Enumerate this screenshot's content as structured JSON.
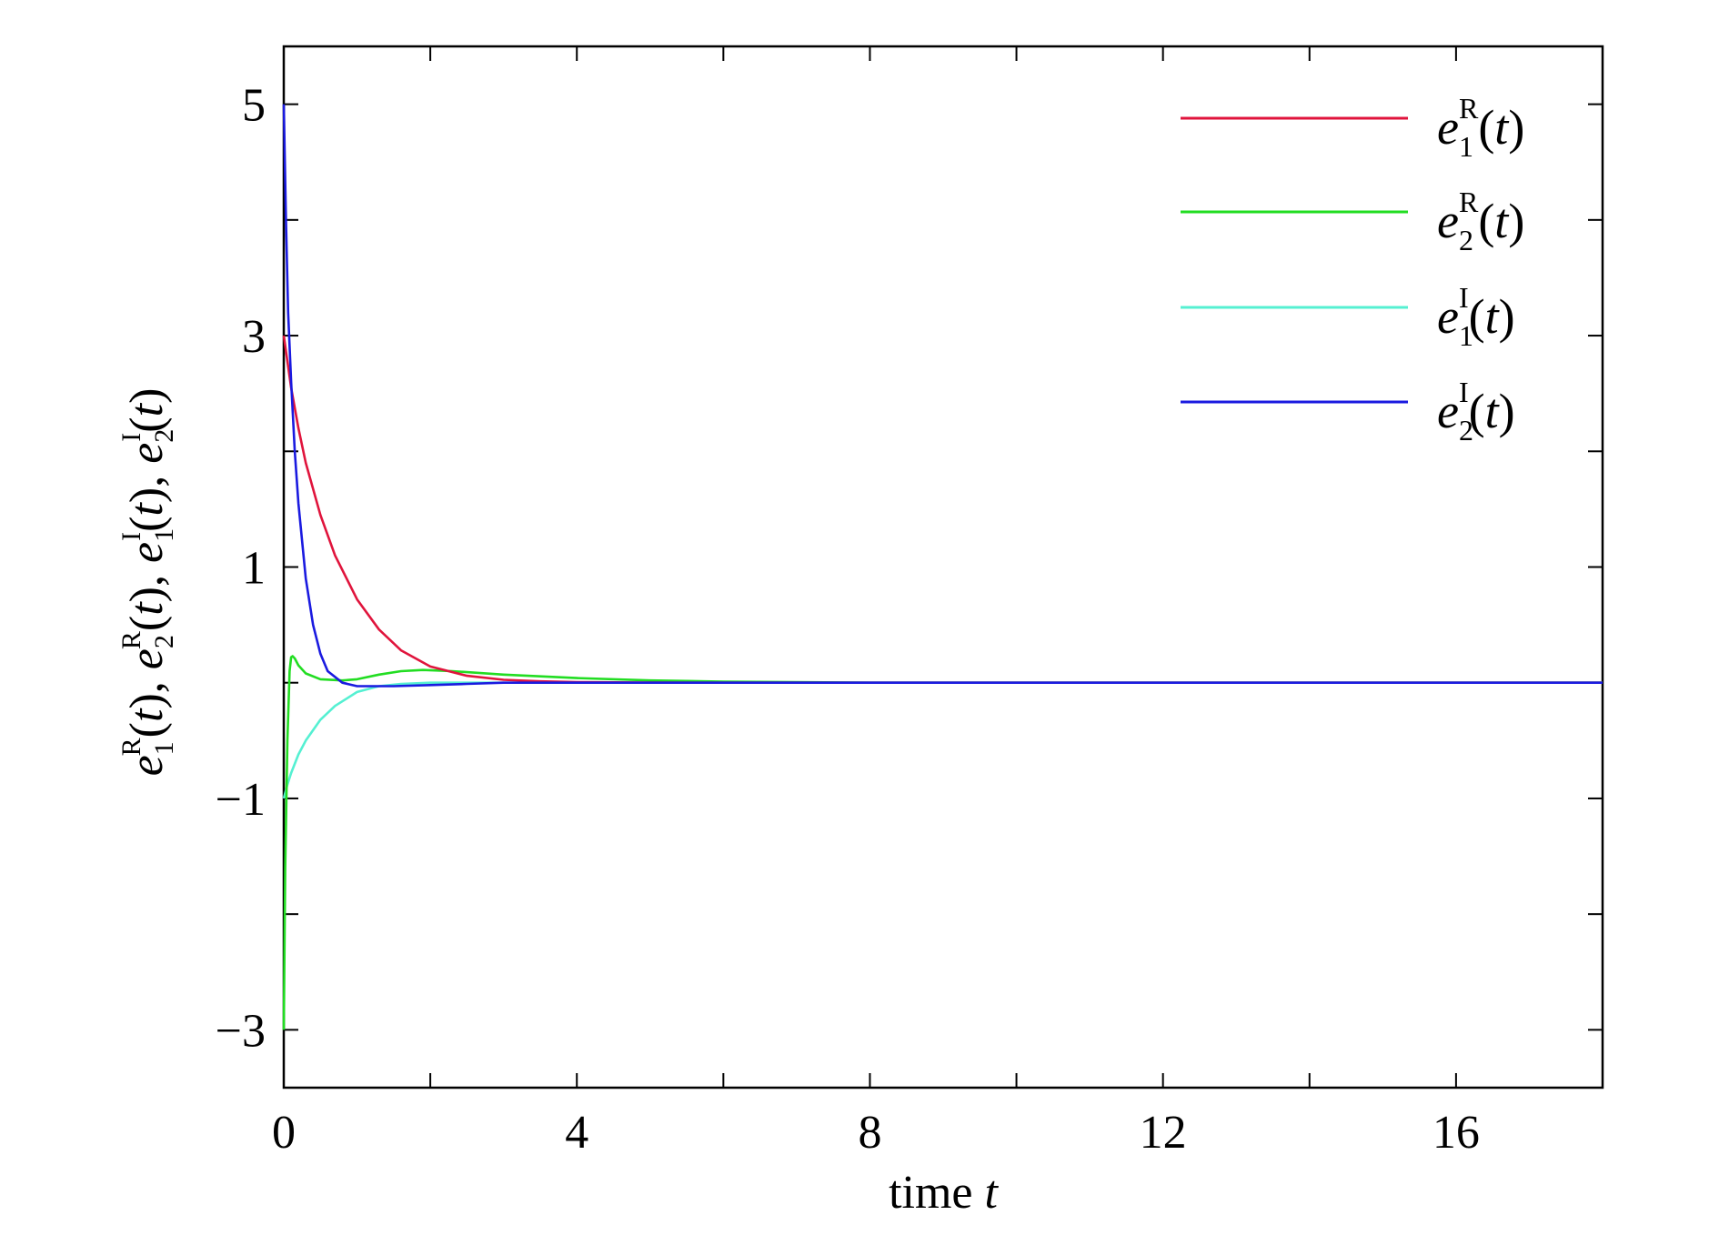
{
  "chart_data": {
    "type": "line",
    "title": "",
    "xlabel": "time t",
    "ylabel": "e1R(t), e2R(t), e1I(t), e2I(t)",
    "xlim": [
      0,
      18
    ],
    "ylim": [
      -3.5,
      5.5
    ],
    "xticks_labeled": [
      0,
      4,
      8,
      12,
      16
    ],
    "xticks_all": [
      0,
      2,
      4,
      6,
      8,
      10,
      12,
      14,
      16
    ],
    "yticks_labeled": [
      -3,
      -1,
      1,
      3,
      5
    ],
    "yticks_all": [
      -3,
      -2,
      -1,
      0,
      1,
      2,
      3,
      4,
      5
    ],
    "x_tick_labels": [
      "0",
      "4",
      "8",
      "12",
      "16"
    ],
    "y_tick_labels": [
      "5",
      "3",
      "1",
      "−1",
      "−3"
    ],
    "grid": false,
    "legend_position": "top-right",
    "series": [
      {
        "name": "e1R(t)",
        "label_base": "e",
        "label_sub": "1",
        "label_sup": "R",
        "label_arg": "(t)",
        "color": "#e0143c",
        "x": [
          0,
          0.1,
          0.2,
          0.3,
          0.5,
          0.7,
          1.0,
          1.3,
          1.6,
          2.0,
          2.5,
          3.0,
          3.5,
          4.0,
          5.0,
          6.0,
          8.0,
          12.0,
          18.0
        ],
        "y": [
          3.0,
          2.55,
          2.2,
          1.9,
          1.45,
          1.1,
          0.72,
          0.46,
          0.28,
          0.14,
          0.06,
          0.025,
          0.012,
          0.005,
          0.002,
          0.0,
          0.0,
          0.0,
          0.0
        ]
      },
      {
        "name": "e2R(t)",
        "label_base": "e",
        "label_sub": "2",
        "label_sup": "R",
        "label_arg": "(t)",
        "color": "#22dd22",
        "x": [
          0,
          0.02,
          0.05,
          0.08,
          0.1,
          0.12,
          0.15,
          0.2,
          0.3,
          0.5,
          0.8,
          1.0,
          1.3,
          1.6,
          1.9,
          2.3,
          3.0,
          4.0,
          5.0,
          6.0,
          8.0,
          12.0,
          18.0
        ],
        "y": [
          -3.0,
          -1.6,
          -0.5,
          0.1,
          0.22,
          0.23,
          0.21,
          0.15,
          0.08,
          0.03,
          0.02,
          0.03,
          0.07,
          0.1,
          0.11,
          0.1,
          0.07,
          0.04,
          0.02,
          0.01,
          0.0,
          0.0,
          0.0
        ]
      },
      {
        "name": "e1I(t)",
        "label_base": "e",
        "label_sub": "1",
        "label_sup": "I",
        "label_arg": "(t)",
        "color": "#55f0d2",
        "x": [
          0,
          0.05,
          0.1,
          0.2,
          0.3,
          0.5,
          0.7,
          1.0,
          1.3,
          1.6,
          2.0,
          2.5,
          3.0,
          4.0,
          5.0,
          8.0,
          18.0
        ],
        "y": [
          -1.0,
          -0.88,
          -0.78,
          -0.62,
          -0.5,
          -0.32,
          -0.2,
          -0.08,
          -0.03,
          -0.01,
          0.0,
          0.0,
          0.0,
          0.0,
          0.0,
          0.0,
          0.0
        ]
      },
      {
        "name": "e2I(t)",
        "label_base": "e",
        "label_sub": "2",
        "label_sup": "I",
        "label_arg": "(t)",
        "color": "#1a1ae0",
        "x": [
          0,
          0.03,
          0.06,
          0.1,
          0.15,
          0.2,
          0.3,
          0.4,
          0.5,
          0.6,
          0.8,
          1.0,
          1.2,
          1.5,
          2.0,
          2.5,
          3.0,
          4.0,
          6.0,
          8.0,
          18.0
        ],
        "y": [
          5.0,
          4.0,
          3.2,
          2.6,
          2.0,
          1.55,
          0.9,
          0.5,
          0.25,
          0.1,
          0.0,
          -0.03,
          -0.03,
          -0.03,
          -0.02,
          -0.01,
          0.0,
          0.0,
          0.0,
          0.0,
          0.0
        ]
      }
    ]
  }
}
